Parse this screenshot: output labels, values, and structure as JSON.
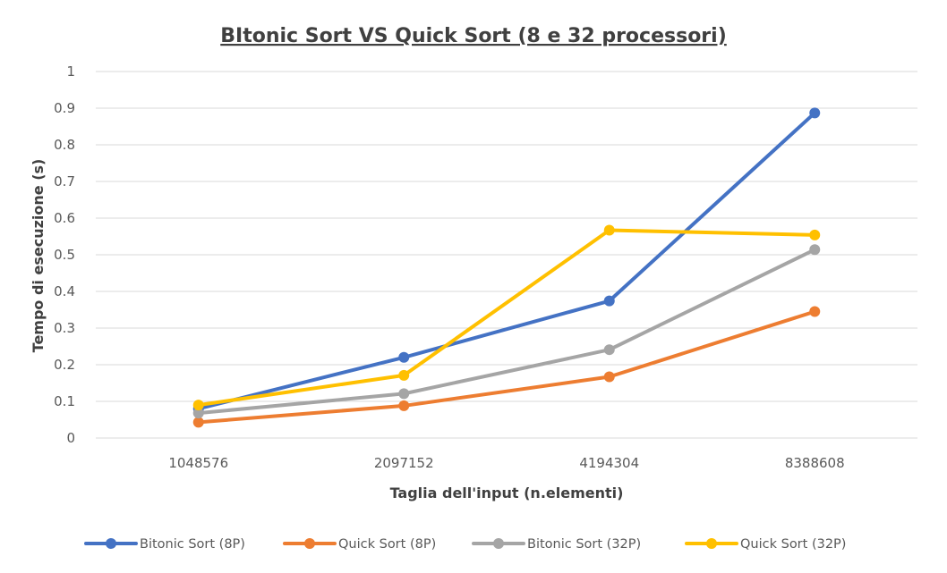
{
  "chart_data": {
    "type": "line",
    "title": "BItonic Sort VS Quick Sort (8 e 32 processori)",
    "xlabel": "Taglia dell'input (n.elementi)",
    "ylabel": "Tempo di esecuzione (s)",
    "categories": [
      "1048576",
      "2097152",
      "4194304",
      "8388608"
    ],
    "ylim": [
      0,
      1
    ],
    "yticks": [
      "0",
      "0.1",
      "0.2",
      "0.3",
      "0.4",
      "0.5",
      "0.6",
      "0.7",
      "0.8",
      "0.9",
      "1"
    ],
    "grid": true,
    "legend_position": "bottom",
    "series": [
      {
        "name": "Bitonic Sort (8P)",
        "color": "#4472c4",
        "values": [
          0.08,
          0.22,
          0.374,
          0.887
        ]
      },
      {
        "name": "Quick Sort (8P)",
        "color": "#ed7d31",
        "values": [
          0.043,
          0.088,
          0.167,
          0.345
        ]
      },
      {
        "name": "Bitonic Sort (32P)",
        "color": "#a5a5a5",
        "values": [
          0.068,
          0.121,
          0.241,
          0.514
        ]
      },
      {
        "name": "Quick Sort (32P)",
        "color": "#ffc000",
        "values": [
          0.09,
          0.171,
          0.567,
          0.554
        ]
      }
    ]
  }
}
